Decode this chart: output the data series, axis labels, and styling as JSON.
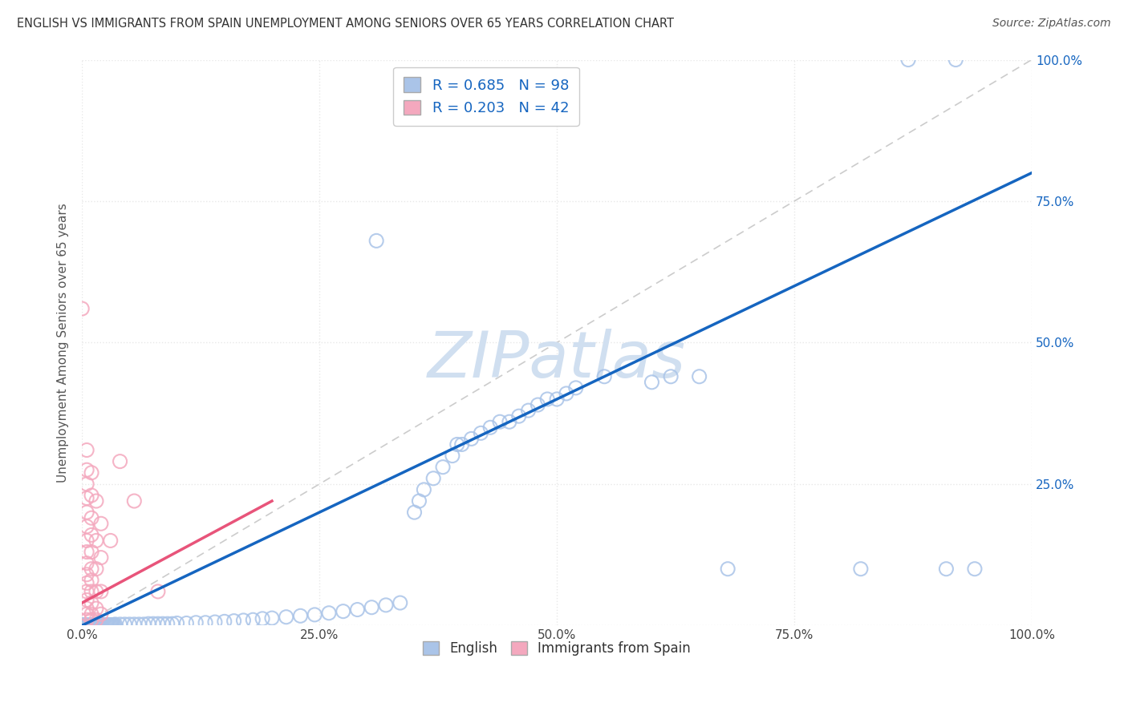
{
  "title": "ENGLISH VS IMMIGRANTS FROM SPAIN UNEMPLOYMENT AMONG SENIORS OVER 65 YEARS CORRELATION CHART",
  "source": "Source: ZipAtlas.com",
  "ylabel": "Unemployment Among Seniors over 65 years",
  "xlim": [
    0,
    1
  ],
  "ylim": [
    0,
    1
  ],
  "xticks": [
    0.0,
    0.25,
    0.5,
    0.75,
    1.0
  ],
  "yticks": [
    0.0,
    0.25,
    0.5,
    0.75,
    1.0
  ],
  "xticklabels": [
    "0.0%",
    "25.0%",
    "50.0%",
    "75.0%",
    "100.0%"
  ],
  "right_yticklabels": [
    "",
    "25.0%",
    "50.0%",
    "75.0%",
    "100.0%"
  ],
  "english_R": 0.685,
  "english_N": 98,
  "spain_R": 0.203,
  "spain_N": 42,
  "english_color": "#aac4e8",
  "spain_color": "#f4a8be",
  "english_line_color": "#1565c0",
  "spain_line_color": "#e8547a",
  "watermark": "ZIPatlas",
  "watermark_color": "#d0dff0",
  "background_color": "#ffffff",
  "grid_color": "#e8e8e8",
  "english_points": [
    [
      0.001,
      0.001
    ],
    [
      0.002,
      0.001
    ],
    [
      0.003,
      0.001
    ],
    [
      0.004,
      0.001
    ],
    [
      0.005,
      0.001
    ],
    [
      0.006,
      0.001
    ],
    [
      0.007,
      0.001
    ],
    [
      0.008,
      0.001
    ],
    [
      0.009,
      0.001
    ],
    [
      0.01,
      0.001
    ],
    [
      0.011,
      0.001
    ],
    [
      0.012,
      0.001
    ],
    [
      0.013,
      0.001
    ],
    [
      0.014,
      0.001
    ],
    [
      0.015,
      0.001
    ],
    [
      0.016,
      0.001
    ],
    [
      0.017,
      0.001
    ],
    [
      0.018,
      0.001
    ],
    [
      0.019,
      0.001
    ],
    [
      0.02,
      0.001
    ],
    [
      0.021,
      0.001
    ],
    [
      0.022,
      0.001
    ],
    [
      0.023,
      0.001
    ],
    [
      0.024,
      0.001
    ],
    [
      0.025,
      0.001
    ],
    [
      0.026,
      0.001
    ],
    [
      0.027,
      0.001
    ],
    [
      0.028,
      0.001
    ],
    [
      0.029,
      0.001
    ],
    [
      0.03,
      0.001
    ],
    [
      0.031,
      0.001
    ],
    [
      0.032,
      0.001
    ],
    [
      0.033,
      0.001
    ],
    [
      0.034,
      0.001
    ],
    [
      0.035,
      0.002
    ],
    [
      0.04,
      0.002
    ],
    [
      0.045,
      0.002
    ],
    [
      0.05,
      0.002
    ],
    [
      0.055,
      0.002
    ],
    [
      0.06,
      0.002
    ],
    [
      0.065,
      0.002
    ],
    [
      0.07,
      0.003
    ],
    [
      0.075,
      0.003
    ],
    [
      0.08,
      0.003
    ],
    [
      0.085,
      0.003
    ],
    [
      0.09,
      0.003
    ],
    [
      0.095,
      0.003
    ],
    [
      0.1,
      0.004
    ],
    [
      0.11,
      0.004
    ],
    [
      0.12,
      0.005
    ],
    [
      0.13,
      0.005
    ],
    [
      0.14,
      0.006
    ],
    [
      0.15,
      0.007
    ],
    [
      0.16,
      0.008
    ],
    [
      0.17,
      0.009
    ],
    [
      0.18,
      0.01
    ],
    [
      0.19,
      0.012
    ],
    [
      0.2,
      0.013
    ],
    [
      0.215,
      0.015
    ],
    [
      0.23,
      0.017
    ],
    [
      0.245,
      0.019
    ],
    [
      0.26,
      0.022
    ],
    [
      0.275,
      0.025
    ],
    [
      0.29,
      0.028
    ],
    [
      0.305,
      0.032
    ],
    [
      0.32,
      0.036
    ],
    [
      0.335,
      0.04
    ],
    [
      0.35,
      0.2
    ],
    [
      0.355,
      0.22
    ],
    [
      0.36,
      0.24
    ],
    [
      0.37,
      0.26
    ],
    [
      0.38,
      0.28
    ],
    [
      0.39,
      0.3
    ],
    [
      0.395,
      0.32
    ],
    [
      0.4,
      0.32
    ],
    [
      0.41,
      0.33
    ],
    [
      0.42,
      0.34
    ],
    [
      0.43,
      0.35
    ],
    [
      0.44,
      0.36
    ],
    [
      0.31,
      0.68
    ],
    [
      0.45,
      0.36
    ],
    [
      0.46,
      0.37
    ],
    [
      0.47,
      0.38
    ],
    [
      0.48,
      0.39
    ],
    [
      0.49,
      0.4
    ],
    [
      0.5,
      0.4
    ],
    [
      0.51,
      0.41
    ],
    [
      0.52,
      0.42
    ],
    [
      0.55,
      0.44
    ],
    [
      0.6,
      0.43
    ],
    [
      0.62,
      0.44
    ],
    [
      0.65,
      0.44
    ],
    [
      0.68,
      0.1
    ],
    [
      0.82,
      0.1
    ],
    [
      0.87,
      1.0
    ],
    [
      0.91,
      0.1
    ],
    [
      0.92,
      1.0
    ],
    [
      0.94,
      0.1
    ]
  ],
  "spain_points": [
    [
      0.0,
      0.56
    ],
    [
      0.005,
      0.31
    ],
    [
      0.005,
      0.275
    ],
    [
      0.005,
      0.25
    ],
    [
      0.005,
      0.225
    ],
    [
      0.005,
      0.2
    ],
    [
      0.005,
      0.175
    ],
    [
      0.005,
      0.15
    ],
    [
      0.005,
      0.13
    ],
    [
      0.005,
      0.11
    ],
    [
      0.005,
      0.09
    ],
    [
      0.005,
      0.075
    ],
    [
      0.005,
      0.06
    ],
    [
      0.005,
      0.045
    ],
    [
      0.005,
      0.03
    ],
    [
      0.005,
      0.02
    ],
    [
      0.005,
      0.01
    ],
    [
      0.01,
      0.27
    ],
    [
      0.01,
      0.23
    ],
    [
      0.01,
      0.19
    ],
    [
      0.01,
      0.16
    ],
    [
      0.01,
      0.13
    ],
    [
      0.01,
      0.1
    ],
    [
      0.01,
      0.08
    ],
    [
      0.01,
      0.06
    ],
    [
      0.01,
      0.04
    ],
    [
      0.01,
      0.02
    ],
    [
      0.01,
      0.01
    ],
    [
      0.015,
      0.22
    ],
    [
      0.015,
      0.15
    ],
    [
      0.015,
      0.1
    ],
    [
      0.015,
      0.06
    ],
    [
      0.015,
      0.03
    ],
    [
      0.015,
      0.01
    ],
    [
      0.02,
      0.18
    ],
    [
      0.02,
      0.12
    ],
    [
      0.02,
      0.06
    ],
    [
      0.02,
      0.02
    ],
    [
      0.03,
      0.15
    ],
    [
      0.04,
      0.29
    ],
    [
      0.055,
      0.22
    ],
    [
      0.08,
      0.06
    ]
  ]
}
